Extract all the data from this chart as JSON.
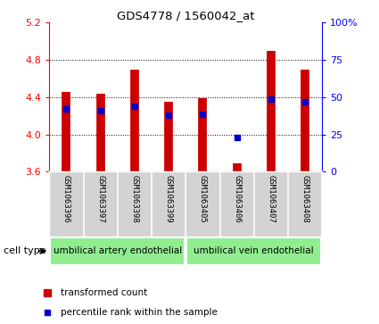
{
  "title": "GDS4778 / 1560042_at",
  "samples": [
    "GSM1063396",
    "GSM1063397",
    "GSM1063398",
    "GSM1063399",
    "GSM1063405",
    "GSM1063406",
    "GSM1063407",
    "GSM1063408"
  ],
  "bar_bottom": 3.6,
  "bar_tops": [
    4.46,
    4.44,
    4.7,
    4.35,
    4.39,
    3.69,
    4.9,
    4.7
  ],
  "percentile_values": [
    4.27,
    4.26,
    4.3,
    4.21,
    4.22,
    3.97,
    4.38,
    4.35
  ],
  "ylim_left": [
    3.6,
    5.2
  ],
  "ylim_right": [
    0,
    100
  ],
  "yticks_left": [
    3.6,
    4.0,
    4.4,
    4.8,
    5.2
  ],
  "yticks_right": [
    0,
    25,
    50,
    75,
    100
  ],
  "ytick_labels_right": [
    "0",
    "25",
    "50",
    "75",
    "100%"
  ],
  "bar_color": "#CC0000",
  "dot_color": "#0000CC",
  "group1_label": "umbilical artery endothelial",
  "group2_label": "umbilical vein endothelial",
  "group1_indices": [
    0,
    1,
    2,
    3
  ],
  "group2_indices": [
    4,
    5,
    6,
    7
  ],
  "cell_type_label": "cell type",
  "legend_bar_label": "transformed count",
  "legend_dot_label": "percentile rank within the sample",
  "bg_color": "#FFFFFF",
  "group_bg": "#90EE90",
  "sample_bg": "#D3D3D3",
  "grid_yticks": [
    4.0,
    4.4,
    4.8
  ]
}
